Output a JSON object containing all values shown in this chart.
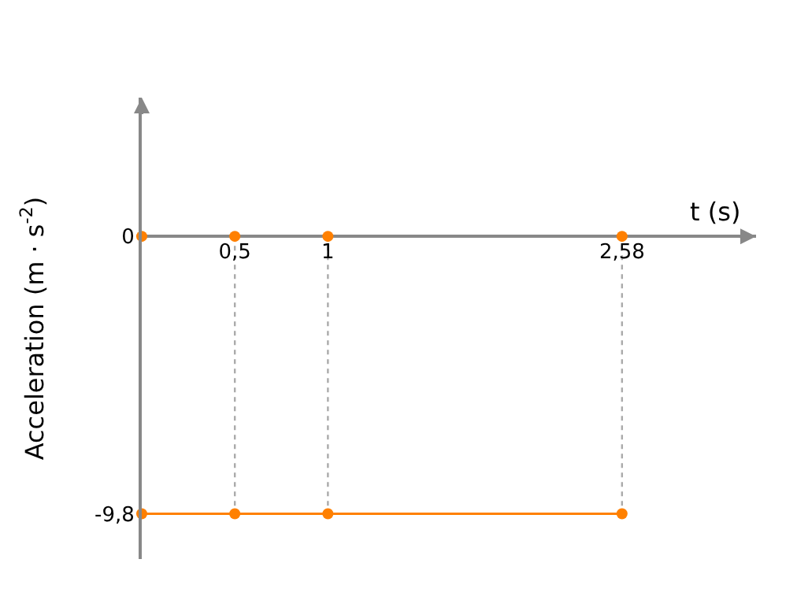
{
  "chart_data": {
    "type": "line",
    "xlabel": "t (s)",
    "ylabel": "Acceleration (m · s$^{-2}$)",
    "series": [
      {
        "color": "#ff8000",
        "x": [
          0,
          0.5,
          1,
          2.58
        ],
        "values": [
          -9.8,
          -9.8,
          -9.8,
          -9.8
        ]
      },
      {
        "type": "scatter",
        "color": "#ff8000",
        "x": [
          0,
          0.5,
          1,
          2.58
        ],
        "values": [
          0,
          0,
          0,
          0
        ]
      }
    ],
    "xlim": [
      0,
      3.3
    ],
    "ylim": [
      -11.4,
      4.9
    ],
    "xticks": [
      {
        "value": 0.5,
        "label": "0,5"
      },
      {
        "value": 1,
        "label": "1"
      },
      {
        "value": 2.58,
        "label": "2,58"
      }
    ],
    "yticks": [
      {
        "value": 0,
        "label": "0"
      },
      {
        "value": -9.8,
        "label": "-9,8"
      }
    ],
    "ref_lines": [
      {
        "axis": "x",
        "value": 0.5,
        "label": null,
        "color": "#aaaaaa",
        "line_style": "dotted"
      },
      {
        "axis": "x",
        "value": 1,
        "label": null,
        "color": "#aaaaaa",
        "line_style": "dotted"
      },
      {
        "axis": "x",
        "value": 2.58,
        "label": null,
        "color": "#aaaaaa",
        "line_style": "dotted"
      }
    ],
    "marker": "circle",
    "grid": false
  }
}
